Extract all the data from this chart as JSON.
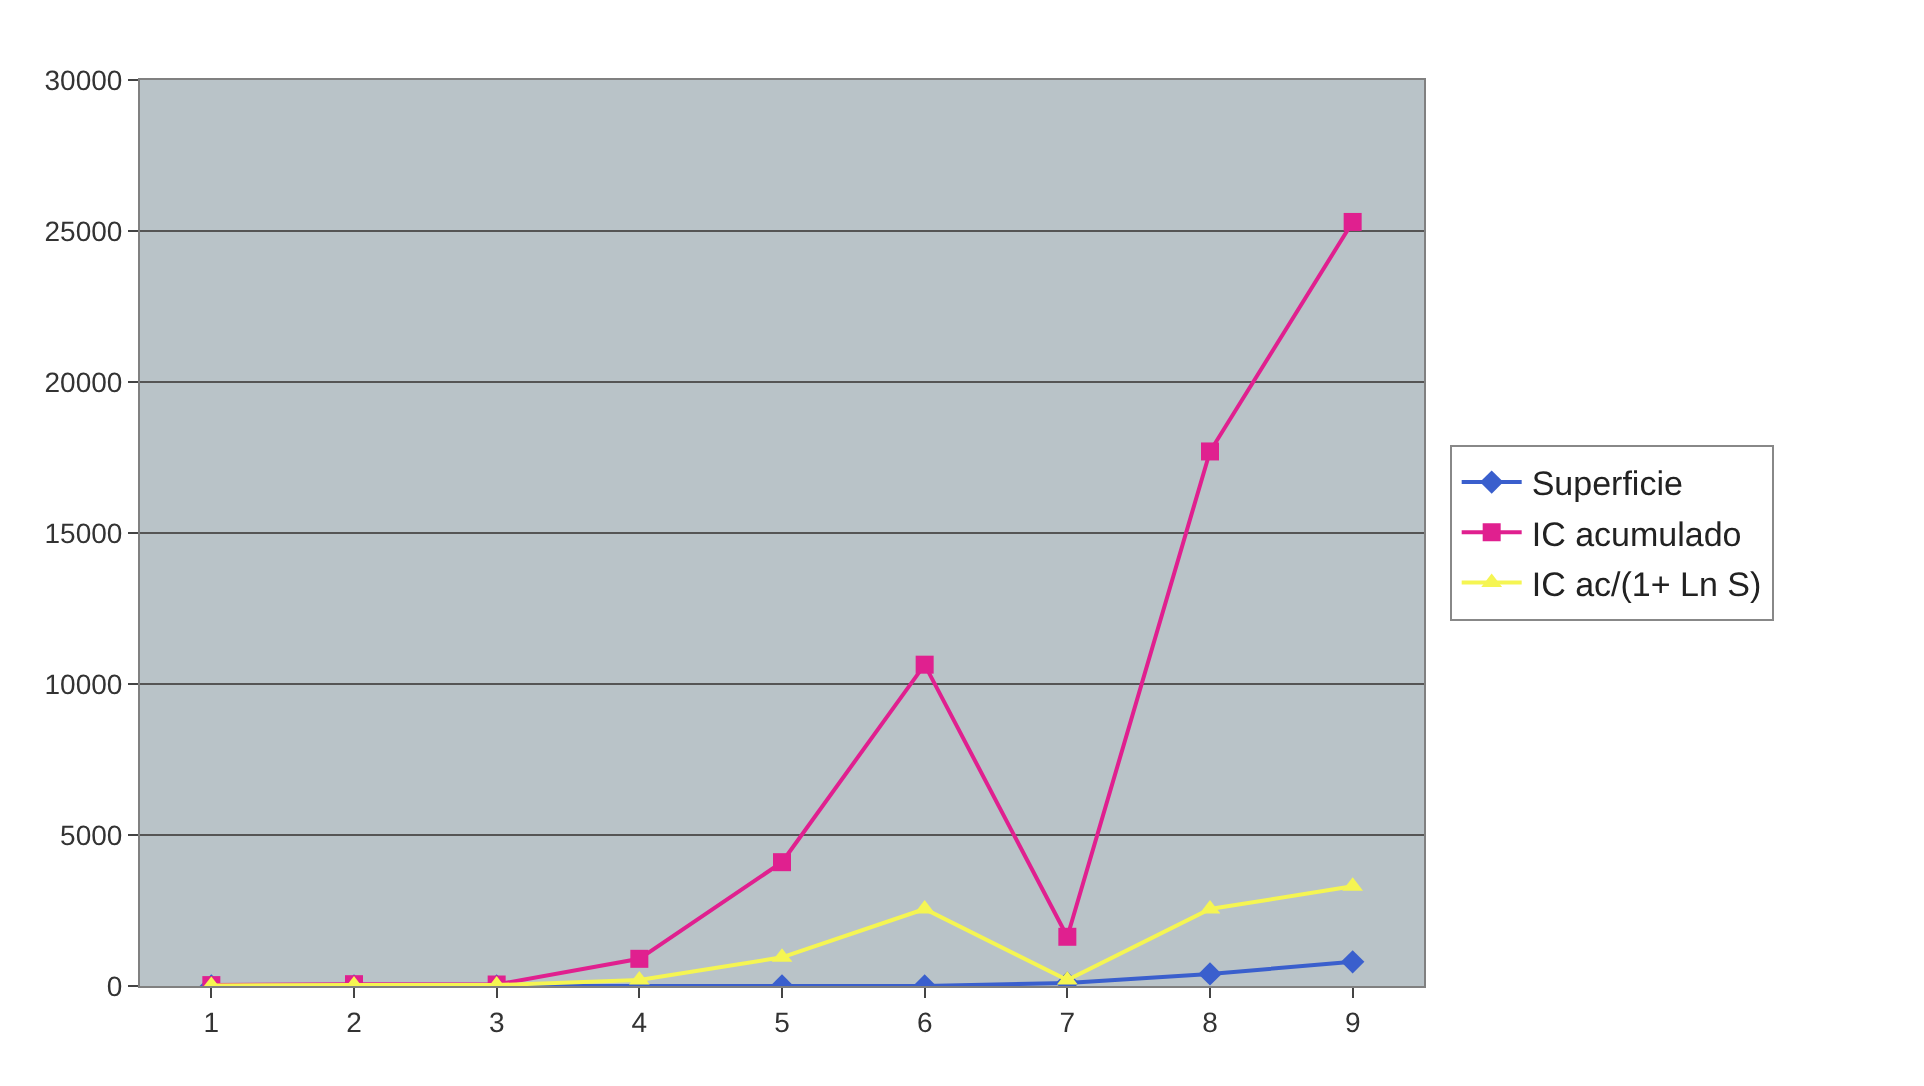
{
  "chart_data": {
    "type": "line",
    "categories": [
      "1",
      "2",
      "3",
      "4",
      "5",
      "6",
      "7",
      "8",
      "9"
    ],
    "series": [
      {
        "name": "Superficie",
        "color": "#3a5fcd",
        "marker": "diamond",
        "values": [
          0,
          0,
          0,
          0,
          0,
          0,
          100,
          400,
          800
        ]
      },
      {
        "name": "IC acumulado",
        "color": "#e0208f",
        "marker": "square",
        "values": [
          30,
          60,
          50,
          900,
          4100,
          10640,
          1630,
          17700,
          25300
        ]
      },
      {
        "name": "IC ac/(1+ Ln S)",
        "color": "#f5f552",
        "marker": "triangle",
        "values": [
          20,
          30,
          30,
          200,
          950,
          2550,
          200,
          2550,
          3300
        ]
      }
    ],
    "ylim": [
      0,
      30000
    ],
    "yticks": [
      0,
      5000,
      10000,
      15000,
      20000,
      25000,
      30000
    ],
    "grid": "y",
    "legend": "right"
  }
}
